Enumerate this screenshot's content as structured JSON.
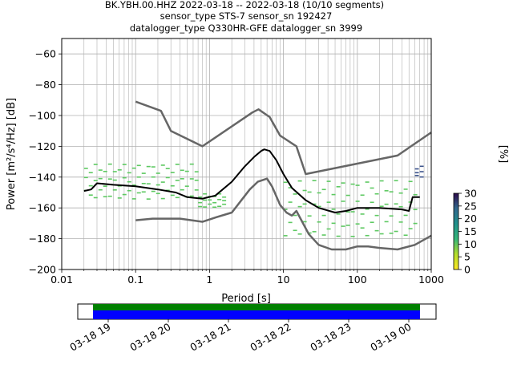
{
  "title": {
    "line1": "BK.YBH.00.HHZ   2022-03-18 -- 2022-03-18  (10/10 segments)",
    "line2": "sensor_type STS-7 sensor_sn 192427",
    "line3": "datalogger_type Q330HR-GFE datalogger_sn 3999"
  },
  "colorbar": {
    "label": "[%]",
    "ticks": [
      "0",
      "5",
      "10",
      "15",
      "20",
      "25",
      "30"
    ],
    "range": [
      0,
      30
    ]
  },
  "timeline": {
    "tick_labels": [
      "03-18 19",
      "03-18 20",
      "03-18 21",
      "03-18 22",
      "03-18 23",
      "03-19 00"
    ],
    "bar_colors": [
      "#008000",
      "#0000ff"
    ]
  },
  "chart_data": {
    "type": "line",
    "xlabel": "Period [s]",
    "ylabel": "Power [m²/s⁴/Hz] [dB]",
    "x_scale": "log",
    "xlim": [
      0.01,
      1000
    ],
    "ylim": [
      -200,
      -50
    ],
    "x_tick_labels": [
      "0.01",
      "0.1",
      "1",
      "10",
      "100",
      "1000"
    ],
    "y_ticks": [
      -60,
      -80,
      -100,
      -120,
      -140,
      -160,
      -180,
      -200
    ],
    "grid": true,
    "series": [
      {
        "role": "noise-model-high",
        "color": "#666666",
        "points": [
          [
            0.1,
            -91
          ],
          [
            0.22,
            -97
          ],
          [
            0.3,
            -110
          ],
          [
            0.8,
            -120
          ],
          [
            3.8,
            -98
          ],
          [
            4.6,
            -96
          ],
          [
            6.5,
            -101
          ],
          [
            9,
            -113
          ],
          [
            15,
            -120
          ],
          [
            20,
            -138
          ],
          [
            350,
            -126
          ],
          [
            1000,
            -111
          ]
        ]
      },
      {
        "role": "noise-model-low",
        "color": "#666666",
        "points": [
          [
            0.1,
            -168
          ],
          [
            0.17,
            -167
          ],
          [
            0.4,
            -167
          ],
          [
            0.8,
            -169
          ],
          [
            1.25,
            -166
          ],
          [
            2,
            -163
          ],
          [
            3.5,
            -148
          ],
          [
            4.5,
            -143
          ],
          [
            6,
            -141
          ],
          [
            7,
            -146
          ],
          [
            9,
            -158
          ],
          [
            11,
            -163
          ],
          [
            13,
            -165
          ],
          [
            15,
            -162
          ],
          [
            22,
            -177
          ],
          [
            30,
            -184
          ],
          [
            45,
            -187
          ],
          [
            70,
            -187
          ],
          [
            100,
            -185
          ],
          [
            140,
            -185
          ],
          [
            200,
            -186
          ],
          [
            350,
            -187
          ],
          [
            600,
            -184
          ],
          [
            1000,
            -178
          ]
        ]
      },
      {
        "role": "mode",
        "color": "#000000",
        "points": [
          [
            0.02,
            -149
          ],
          [
            0.025,
            -148
          ],
          [
            0.03,
            -144
          ],
          [
            0.05,
            -145
          ],
          [
            0.1,
            -146
          ],
          [
            0.2,
            -148
          ],
          [
            0.35,
            -150
          ],
          [
            0.5,
            -153
          ],
          [
            0.8,
            -154
          ],
          [
            1.2,
            -152
          ],
          [
            2,
            -143
          ],
          [
            3,
            -133
          ],
          [
            4,
            -127
          ],
          [
            5,
            -123
          ],
          [
            5.5,
            -122
          ],
          [
            6.5,
            -123
          ],
          [
            8,
            -129
          ],
          [
            10,
            -138
          ],
          [
            13,
            -147
          ],
          [
            20,
            -155
          ],
          [
            30,
            -160
          ],
          [
            50,
            -163
          ],
          [
            70,
            -162
          ],
          [
            100,
            -160
          ],
          [
            200,
            -160
          ],
          [
            400,
            -161
          ],
          [
            500,
            -162
          ],
          [
            560,
            -153
          ],
          [
            700,
            -153
          ]
        ]
      }
    ],
    "psd_density_bands": [
      {
        "x": [
          0.02,
          0.7
        ],
        "y": [
          -155,
          -130
        ],
        "color": "#5ec962"
      },
      {
        "x": [
          0.7,
          1.5
        ],
        "y": [
          -160,
          -150
        ],
        "color": "#5ec962"
      },
      {
        "x": [
          10,
          600
        ],
        "y": [
          -180,
          -140
        ],
        "color": "#5ec962"
      },
      {
        "x": [
          600,
          700
        ],
        "y": [
          -140,
          -132
        ],
        "color": "#3b528b"
      }
    ]
  }
}
